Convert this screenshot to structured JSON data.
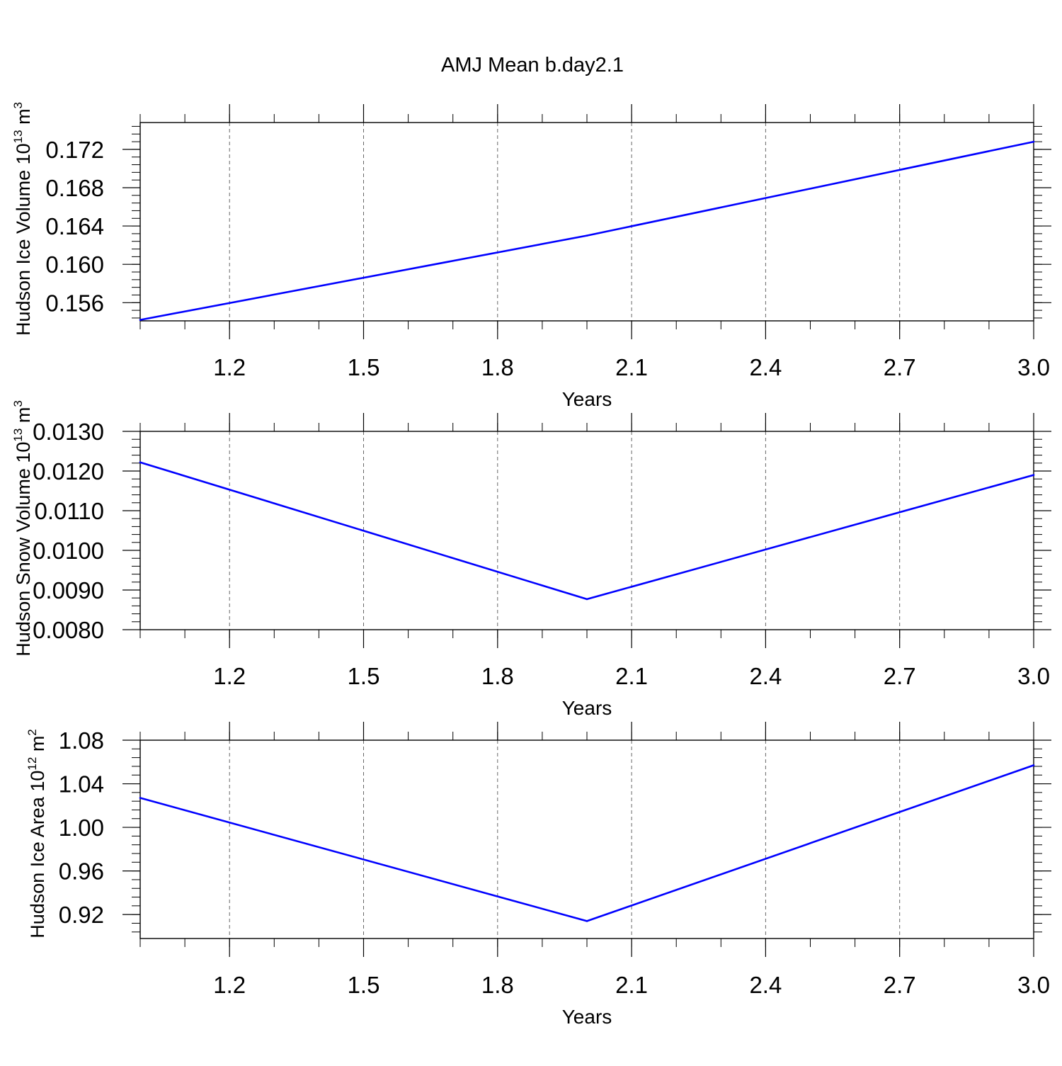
{
  "title": "AMJ Mean b.day2.1",
  "line_color": "#0000ff",
  "chart_data": [
    {
      "type": "line",
      "title": "AMJ Mean b.day2.1",
      "xlabel": "Years",
      "ylabel": {
        "text": "Hudson Ice Volume 10",
        "exp": "13",
        "unit": " m",
        "unit_exp": "3"
      },
      "xlim": [
        1.0,
        3.0
      ],
      "ylim": [
        0.1541,
        0.1748
      ],
      "x_ticks": [
        1.2,
        1.5,
        1.8,
        2.1,
        2.4,
        2.7,
        3.0
      ],
      "x_ticklabels": [
        "1.2",
        "1.5",
        "1.8",
        "2.1",
        "2.4",
        "2.7",
        "3.0"
      ],
      "y_ticks": [
        0.156,
        0.16,
        0.164,
        0.168,
        0.172
      ],
      "y_ticklabels": [
        "0.156",
        "0.160",
        "0.164",
        "0.168",
        "0.172"
      ],
      "grid": "vertical dashed",
      "series": [
        {
          "x": [
            1.0,
            2.0,
            3.0
          ],
          "values": [
            0.1542,
            0.163,
            0.1728
          ]
        }
      ]
    },
    {
      "type": "line",
      "xlabel": "Years",
      "ylabel": {
        "text": "Hudson Snow Volume 10",
        "exp": "13",
        "unit": " m",
        "unit_exp": "3"
      },
      "xlim": [
        1.0,
        3.0
      ],
      "ylim": [
        0.008,
        0.013
      ],
      "x_ticks": [
        1.2,
        1.5,
        1.8,
        2.1,
        2.4,
        2.7,
        3.0
      ],
      "x_ticklabels": [
        "1.2",
        "1.5",
        "1.8",
        "2.1",
        "2.4",
        "2.7",
        "3.0"
      ],
      "y_ticks": [
        0.008,
        0.009,
        0.01,
        0.011,
        0.012,
        0.013
      ],
      "y_ticklabels": [
        "0.0080",
        "0.0090",
        "0.0100",
        "0.0110",
        "0.0120",
        "0.0130"
      ],
      "grid": "vertical dashed",
      "series": [
        {
          "x": [
            1.0,
            2.0,
            3.0
          ],
          "values": [
            0.01222,
            0.00877,
            0.0119
          ]
        }
      ]
    },
    {
      "type": "line",
      "xlabel": "Years",
      "ylabel": {
        "text": "Hudson Ice Area 10",
        "exp": "12",
        "unit": " m",
        "unit_exp": "2"
      },
      "xlim": [
        1.0,
        3.0
      ],
      "ylim": [
        0.898,
        1.08
      ],
      "x_ticks": [
        1.2,
        1.5,
        1.8,
        2.1,
        2.4,
        2.7,
        3.0
      ],
      "x_ticklabels": [
        "1.2",
        "1.5",
        "1.8",
        "2.1",
        "2.4",
        "2.7",
        "3.0"
      ],
      "y_ticks": [
        0.92,
        0.96,
        1.0,
        1.04,
        1.08
      ],
      "y_ticklabels": [
        "0.92",
        "0.96",
        "1.00",
        "1.04",
        "1.08"
      ],
      "grid": "vertical dashed",
      "series": [
        {
          "x": [
            1.0,
            2.0,
            3.0
          ],
          "values": [
            1.027,
            0.914,
            1.057
          ]
        }
      ]
    }
  ]
}
